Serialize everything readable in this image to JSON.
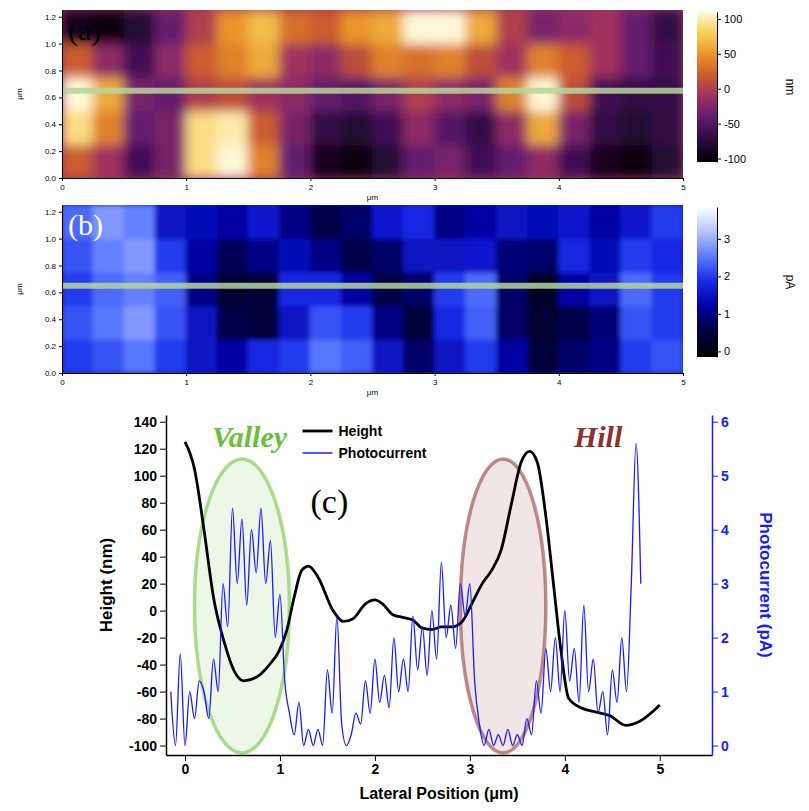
{
  "chart_data": [
    {
      "type": "heatmap",
      "panel": "(a)",
      "x_label": "μm",
      "y_label": "μm",
      "xlim": [
        0,
        5
      ],
      "ylim": [
        0,
        1.25
      ],
      "xticks": [
        0,
        1,
        2,
        3,
        4,
        5
      ],
      "yticks": [
        {
          "value": 0,
          "label": "0.0"
        },
        0.2,
        0.4,
        0.6,
        0.8,
        {
          "value": 1,
          "label": "1.0"
        },
        1.2
      ],
      "x_edges": [
        0,
        0.25,
        0.5,
        0.75,
        1,
        1.25,
        1.5,
        1.75,
        2,
        2.25,
        2.5,
        2.75,
        3,
        3.25,
        3.5,
        3.75,
        4,
        4.25,
        4.5,
        4.75,
        5
      ],
      "y_edges": [
        0,
        0.25,
        0.5,
        0.75,
        1,
        1.25
      ],
      "z": [
        [
          20,
          -10,
          -60,
          -30,
          90,
          110,
          40,
          -40,
          -90,
          -100,
          -80,
          -40,
          -30,
          -60,
          -40,
          -20,
          -60,
          -90,
          -100,
          -80
        ],
        [
          90,
          40,
          -40,
          -30,
          90,
          100,
          20,
          -30,
          -70,
          -80,
          -60,
          -20,
          -50,
          -70,
          -20,
          60,
          -30,
          -70,
          -80,
          -70
        ],
        [
          110,
          60,
          -30,
          -40,
          0,
          10,
          -10,
          -20,
          -40,
          -50,
          -30,
          0,
          -20,
          -30,
          40,
          120,
          10,
          -60,
          -70,
          -70
        ],
        [
          20,
          -20,
          -60,
          -20,
          20,
          40,
          60,
          -10,
          -20,
          10,
          40,
          30,
          40,
          10,
          -10,
          40,
          20,
          -10,
          -40,
          -60
        ],
        [
          -90,
          -100,
          -80,
          -40,
          0,
          50,
          70,
          30,
          20,
          50,
          60,
          110,
          120,
          60,
          0,
          -30,
          -20,
          -10,
          -40,
          -70
        ]
      ],
      "profile_y": 0.65,
      "colorbar": {
        "label": "nm",
        "lim": [
          -105,
          110
        ],
        "ticks": [
          -100,
          -50,
          0,
          50,
          100
        ],
        "colors": [
          "#000000",
          "#2a0a3e",
          "#5c1a6e",
          "#9a2f62",
          "#c9582e",
          "#e8922a",
          "#f7cf55",
          "#fff8d8"
        ]
      }
    },
    {
      "type": "heatmap",
      "panel": "(b)",
      "x_label": "μm",
      "y_label": "μm",
      "xlim": [
        0,
        5
      ],
      "ylim": [
        0,
        1.25
      ],
      "xticks": [
        0,
        1,
        2,
        3,
        4,
        5
      ],
      "yticks": [
        {
          "value": 0,
          "label": "0.0"
        },
        0.2,
        0.4,
        0.6,
        0.8,
        {
          "value": 1,
          "label": "1.0"
        },
        1.2
      ],
      "x_edges": [
        0,
        0.25,
        0.5,
        0.75,
        1,
        1.25,
        1.5,
        1.75,
        2,
        2.25,
        2.5,
        2.75,
        3,
        3.25,
        3.5,
        3.75,
        4,
        4.25,
        4.5,
        4.75,
        5
      ],
      "y_edges": [
        0,
        0.25,
        0.5,
        0.75,
        1,
        1.25
      ],
      "z": [
        [
          2.0,
          2.2,
          2.5,
          2.0,
          1.5,
          1.2,
          1.8,
          2.0,
          2.5,
          2.3,
          1.5,
          0.8,
          1.5,
          2.0,
          1.2,
          0.5,
          0.8,
          1.0,
          2.0,
          2.2
        ],
        [
          2.2,
          2.5,
          2.8,
          2.2,
          1.5,
          0.6,
          0.5,
          1.5,
          2.2,
          2.0,
          1.0,
          0.5,
          1.8,
          2.3,
          0.8,
          0.4,
          0.6,
          0.9,
          2.2,
          2.0
        ],
        [
          2.0,
          2.4,
          2.6,
          2.3,
          1.0,
          0.4,
          0.5,
          1.8,
          1.8,
          1.2,
          0.6,
          0.8,
          2.0,
          2.4,
          0.8,
          0.3,
          1.2,
          1.5,
          2.4,
          2.0
        ],
        [
          2.2,
          2.6,
          2.8,
          2.0,
          1.2,
          0.7,
          1.0,
          1.4,
          1.0,
          0.6,
          0.8,
          1.5,
          1.5,
          1.6,
          0.9,
          0.8,
          1.8,
          1.4,
          2.0,
          1.8
        ],
        [
          2.4,
          2.8,
          2.6,
          1.5,
          1.4,
          1.2,
          1.6,
          1.0,
          0.6,
          0.8,
          1.6,
          1.8,
          1.0,
          1.2,
          1.5,
          1.4,
          1.6,
          1.2,
          1.6,
          2.0
        ]
      ],
      "profile_y": 0.65,
      "colorbar": {
        "label": "pA",
        "lim": [
          -0.15,
          3.85
        ],
        "ticks": [
          0,
          1,
          2,
          3
        ],
        "colors": [
          "#000000",
          "#00003c",
          "#0000a0",
          "#1428e6",
          "#5a78ff",
          "#b4c3ff",
          "#ffffff"
        ]
      }
    },
    {
      "type": "line",
      "panel": "(c)",
      "x_label": "Lateral Position (μm)",
      "y_label": "Height (nm)",
      "y2_label": "Photocurrent (pA)",
      "xlim": [
        -0.2,
        5.55
      ],
      "ylim": [
        -107,
        145
      ],
      "y2lim": [
        -0.175,
        6.125
      ],
      "xticks": [
        0,
        1,
        2,
        3,
        4,
        5
      ],
      "yticks": [
        -100,
        -80,
        -60,
        -40,
        -20,
        0,
        20,
        40,
        60,
        80,
        100,
        120,
        140
      ],
      "y2ticks": [
        0,
        1,
        2,
        3,
        4,
        5,
        6
      ],
      "legend": "top",
      "series": [
        {
          "name": "Height",
          "color": "#000000",
          "axis": "y",
          "x": [
            0,
            0.1,
            0.2,
            0.3,
            0.42,
            0.52,
            0.62,
            0.78,
            0.89,
            0.99,
            1.07,
            1.15,
            1.23,
            1.3,
            1.4,
            1.56,
            1.67,
            1.77,
            1.9,
            2,
            2.08,
            2.19,
            2.29,
            2.4,
            2.5,
            2.6,
            2.7,
            2.81,
            2.92,
            3.02,
            3.13,
            3.23,
            3.33,
            3.44,
            3.54,
            3.63,
            3.71,
            3.8,
            3.88,
            3.96,
            4.04,
            4.17,
            4.32,
            4.48,
            4.64,
            4.79,
            5
          ],
          "values": [
            125,
            105,
            60,
            10,
            -25,
            -45,
            -52,
            -48,
            -40,
            -30,
            -15,
            10,
            30,
            33,
            25,
            0,
            -8,
            -6,
            5,
            8,
            5,
            -3,
            -5,
            -7,
            -13,
            -14,
            -12,
            -12,
            -8,
            5,
            20,
            30,
            45,
            80,
            110,
            118,
            110,
            70,
            20,
            -30,
            -65,
            -72,
            -75,
            -78,
            -85,
            -82,
            -70
          ]
        },
        {
          "name": "Photocurrent",
          "color": "#1a1aff",
          "axis": "y2",
          "x": [
            -0.15,
            -0.1,
            -0.05,
            0,
            0.05,
            0.1,
            0.15,
            0.2,
            0.25,
            0.3,
            0.35,
            0.4,
            0.45,
            0.5,
            0.55,
            0.6,
            0.65,
            0.7,
            0.75,
            0.8,
            0.85,
            0.9,
            0.95,
            1,
            1.05,
            1.1,
            1.15,
            1.2,
            1.25,
            1.3,
            1.35,
            1.4,
            1.45,
            1.5,
            1.55,
            1.6,
            1.65,
            1.7,
            1.75,
            1.8,
            1.85,
            1.9,
            1.95,
            2,
            2.05,
            2.1,
            2.15,
            2.2,
            2.25,
            2.3,
            2.35,
            2.4,
            2.45,
            2.5,
            2.55,
            2.6,
            2.65,
            2.7,
            2.75,
            2.8,
            2.85,
            2.9,
            2.95,
            3,
            3.05,
            3.1,
            3.15,
            3.2,
            3.25,
            3.3,
            3.35,
            3.4,
            3.45,
            3.5,
            3.55,
            3.6,
            3.65,
            3.7,
            3.75,
            3.8,
            3.85,
            3.9,
            3.95,
            4,
            4.05,
            4.1,
            4.15,
            4.2,
            4.25,
            4.3,
            4.35,
            4.4,
            4.45,
            4.5,
            4.55,
            4.6,
            4.65,
            4.7,
            4.75,
            4.8
          ],
          "values": [
            1.0,
            0,
            1.7,
            0,
            1.0,
            0.5,
            1.2,
            1.0,
            0.5,
            1.6,
            1.0,
            3.0,
            2.2,
            4.4,
            3.0,
            4.2,
            2.6,
            4.0,
            3.2,
            4.4,
            3.0,
            3.8,
            2.0,
            2.8,
            1.2,
            0.6,
            0.2,
            0.8,
            0,
            0.3,
            0,
            0.3,
            0,
            1.4,
            0.6,
            2.4,
            0.4,
            0,
            0.2,
            0.6,
            0.4,
            1.2,
            0.6,
            1.6,
            0.8,
            1.3,
            0.7,
            2.0,
            1.0,
            1.6,
            1.0,
            2.4,
            1.4,
            2.2,
            1.3,
            2.5,
            1.6,
            3.4,
            2.0,
            2.6,
            1.8,
            3.0,
            2.4,
            3.0,
            1.2,
            0.4,
            0,
            0.3,
            0,
            0.2,
            0,
            0.3,
            0,
            0.2,
            0,
            0.5,
            0.2,
            1.2,
            0.6,
            1.8,
            1.0,
            2.0,
            1.0,
            2.5,
            1.2,
            1.8,
            0.8,
            2.6,
            1.0,
            1.6,
            0.6,
            1.0,
            0.2,
            1.4,
            0.8,
            2.0,
            1.0,
            3.0,
            5.6,
            3.0
          ]
        }
      ],
      "annotations": [
        {
          "text": "Valley",
          "x": 0.68,
          "region": [
            0.1,
            1.1
          ],
          "color": "#6abf3c"
        },
        {
          "text": "Hill",
          "x": 4.35,
          "region": [
            2.9,
            3.8
          ],
          "color": "#8b2f2f"
        }
      ]
    }
  ]
}
